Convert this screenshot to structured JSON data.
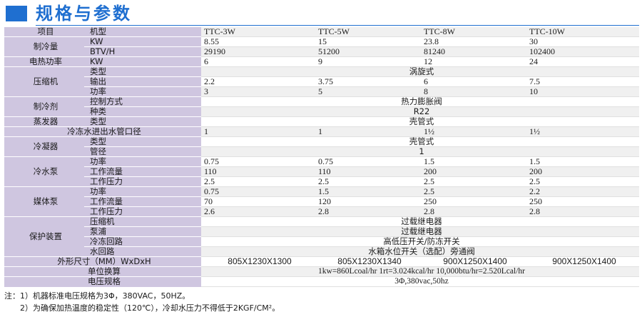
{
  "header": {
    "title": "规格与参数"
  },
  "table": {
    "model_label": "项目",
    "model_sub": "机型",
    "models": [
      "TTC-3W",
      "TTC-5W",
      "TTC-8W",
      "TTC-10W"
    ],
    "cooling": {
      "label": "制冷量",
      "rows": [
        {
          "unit": "KW",
          "values": [
            "8.55",
            "15",
            "23.8",
            "30"
          ]
        },
        {
          "unit": "BTV/H",
          "values": [
            "29190",
            "51200",
            "81240",
            "102400"
          ]
        }
      ]
    },
    "heating": {
      "label": "电热功率",
      "unit": "KW",
      "values": [
        "6",
        "9",
        "12",
        "24"
      ]
    },
    "compressor": {
      "label": "压缩机",
      "type_label": "类型",
      "type_value": "涡旋式",
      "rows": [
        {
          "sub": "输出",
          "values": [
            "2.2",
            "3.75",
            "6",
            "7.5"
          ]
        },
        {
          "sub": "功率",
          "values": [
            "3",
            "5",
            "8",
            "10"
          ]
        }
      ]
    },
    "refrigerant": {
      "label": "制冷剂",
      "rows": [
        {
          "sub": "控制方式",
          "value": "热力膨胀阀"
        },
        {
          "sub": "种类",
          "value": "R22"
        }
      ]
    },
    "evaporator": {
      "label": "蒸发器",
      "type_label": "类型",
      "type_value": "壳管式",
      "pipe_label": "冷冻水进出水管口径",
      "pipe_values": [
        "1",
        "1",
        "1½",
        "1½"
      ]
    },
    "condenser": {
      "label": "冷凝器",
      "rows": [
        {
          "sub": "类型",
          "value": "壳管式"
        },
        {
          "sub": "管径",
          "value": "1"
        }
      ]
    },
    "cold_pump": {
      "label": "冷水泵",
      "rows": [
        {
          "sub": "功率",
          "values": [
            "0.75",
            "0.75",
            "1.5",
            "1.5"
          ]
        },
        {
          "sub": "工作流量",
          "values": [
            "110",
            "110",
            "200",
            "200"
          ]
        },
        {
          "sub": "工作压力",
          "values": [
            "2.5",
            "2.5",
            "2.5",
            "2.5"
          ]
        }
      ]
    },
    "medium_pump": {
      "label": "媒体泵",
      "rows": [
        {
          "sub": "功率",
          "values": [
            "0.75",
            "1.5",
            "2.5",
            "2.2"
          ]
        },
        {
          "sub": "工作流量",
          "values": [
            "70",
            "120",
            "250",
            "250"
          ]
        },
        {
          "sub": "工作压力",
          "values": [
            "2.6",
            "2.8",
            "2.8",
            "2.8"
          ]
        }
      ]
    },
    "protection": {
      "label": "保护装置",
      "rows": [
        {
          "sub": "压缩机",
          "value": "过载继电器"
        },
        {
          "sub": "泵浦",
          "value": "过载继电器"
        },
        {
          "sub": "冷冻回路",
          "value": "高低压开关/防冻开关"
        },
        {
          "sub": "水回路",
          "value": "水箱水位开关（选配）旁通阀"
        }
      ]
    },
    "dimensions": {
      "label": "外形尺寸（MM）WxDxH",
      "values": [
        "805X1230X1300",
        "805X1230X1340",
        "900X1250X1400",
        "900X1250X1400"
      ]
    },
    "unit_conversion": {
      "label": "单位换算",
      "value": "1kw=860Lcoal/hr  1rt=3.024kcal/hr  10,000btu/hr=2.520Lcal/hr"
    },
    "power_spec": {
      "label": "电压规格",
      "value": "3Φ,380vac,50hz"
    }
  },
  "notes": {
    "line1": "注：1）机器标准电压规格为3Φ，380VAC，50HZ。",
    "line2": "2）为确保加热温度的稳定性（120℃），冷却水压力不得低于2KGF/CM²。"
  },
  "colors": {
    "accent": "#1f6fd0",
    "label_bg": "#cfc6e0",
    "row_alt": "#f0f0f0"
  }
}
